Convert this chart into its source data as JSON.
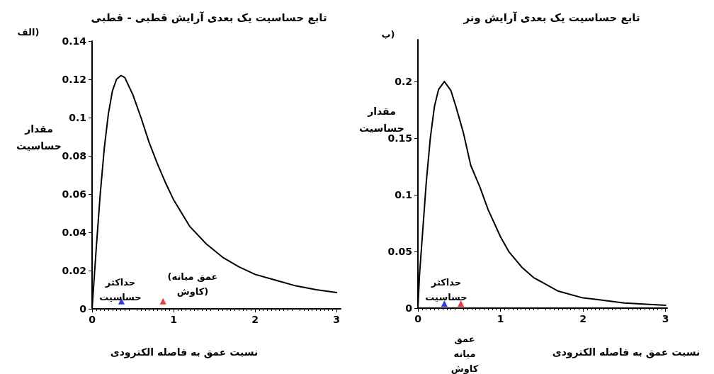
{
  "chart_data": [
    {
      "type": "line",
      "title": "تابع حساسیت یک بعدی آرایش قطبی - قطبی",
      "xlabel": "نسبت عمق به فاصله الکترودی",
      "ylabel": "مقدار حساسیت",
      "x": [
        0,
        0.05,
        0.1,
        0.15,
        0.2,
        0.25,
        0.3,
        0.354,
        0.4,
        0.5,
        0.6,
        0.7,
        0.8,
        0.9,
        1.0,
        1.2,
        1.4,
        1.6,
        1.8,
        2.0,
        2.25,
        2.5,
        2.75,
        3.0
      ],
      "series": [
        {
          "color": "#000000",
          "values": [
            0,
            0.031,
            0.06,
            0.084,
            0.102,
            0.114,
            0.12,
            0.122,
            0.121,
            0.112,
            0.1,
            0.087,
            0.076,
            0.066,
            0.057,
            0.043,
            0.034,
            0.027,
            0.022,
            0.018,
            0.015,
            0.012,
            0.01,
            0.0085
          ]
        },
        {
          "type": "scatter",
          "marker": "triangle",
          "color": "#0000ff",
          "x": [
            0.36
          ],
          "values": [
            0.004
          ]
        },
        {
          "type": "scatter",
          "marker": "triangle",
          "color": "#ff0000",
          "x": [
            0.87
          ],
          "values": [
            0.004
          ]
        }
      ],
      "xlim": [
        0,
        3.05
      ],
      "xticks": [
        0,
        1,
        2,
        3
      ],
      "ylim": [
        0,
        0.14
      ],
      "yticks": [
        0,
        0.02,
        0.04,
        0.06,
        0.08,
        0.1,
        0.12,
        0.14
      ],
      "grid": false,
      "marker": "none",
      "line_style": "solid",
      "annotations": [
        "الف)",
        "حداکثر حساسیت",
        "(عمق میانه کاوش)"
      ]
    },
    {
      "type": "line",
      "title": "تابع حساسیت یک بعدی آرایش ونر",
      "xlabel": "نسبت عمق به فاصله الکترودی",
      "ylabel": "مقدار حساسیت",
      "x": [
        0,
        0.02,
        0.05,
        0.1,
        0.15,
        0.2,
        0.25,
        0.32,
        0.4,
        0.46,
        0.55,
        0.64,
        0.75,
        0.85,
        1.0,
        1.1,
        1.26,
        1.4,
        1.7,
        2.0,
        2.13,
        2.5,
        3.0
      ],
      "series": [
        {
          "color": "#000000",
          "values": [
            0,
            0.03,
            0.06,
            0.11,
            0.15,
            0.178,
            0.193,
            0.2,
            0.192,
            0.178,
            0.155,
            0.126,
            0.107,
            0.087,
            0.063,
            0.05,
            0.036,
            0.027,
            0.015,
            0.009,
            0.008,
            0.0045,
            0.0025
          ]
        },
        {
          "type": "scatter",
          "marker": "triangle",
          "color": "#0000ff",
          "x": [
            0.32
          ],
          "values": [
            0.004
          ]
        },
        {
          "type": "scatter",
          "marker": "triangle",
          "color": "#ff0000",
          "x": [
            0.52
          ],
          "values": [
            0.004
          ]
        }
      ],
      "xlim": [
        0,
        3.02
      ],
      "xticks": [
        0,
        1,
        2,
        3
      ],
      "ylim": [
        0,
        0.237
      ],
      "yticks": [
        0,
        0.05,
        0.1,
        0.15,
        0.2
      ],
      "grid": false,
      "marker": "none",
      "line_style": "solid",
      "annotations": [
        "ب)",
        "حداکثر حساسیت",
        "عمق میانه کاوش"
      ]
    }
  ]
}
